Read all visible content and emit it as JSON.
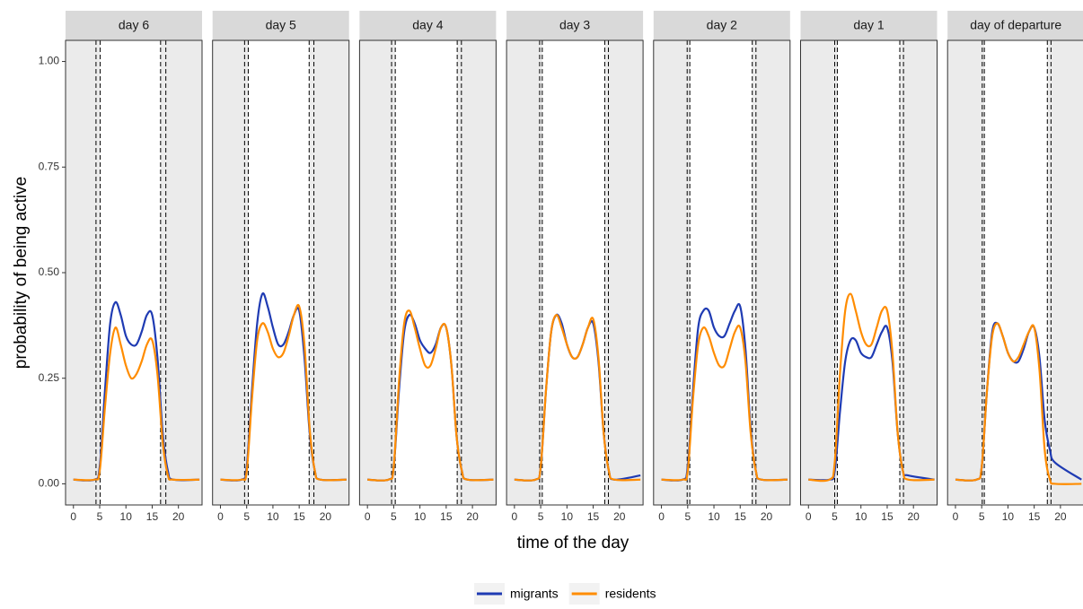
{
  "x_label": "time of the day",
  "y_label": "probability of being active",
  "chart_data": [
    {
      "type": "line",
      "title": "day 6",
      "xlim": [
        -1.5,
        24.5
      ],
      "ylim": [
        -0.05,
        1.05
      ],
      "xticks": [
        0,
        5,
        10,
        15,
        20
      ],
      "yticks": [
        {
          "value": 0,
          "label": "0.00"
        },
        {
          "value": 0.25,
          "label": "0.25"
        },
        {
          "value": 0.5,
          "label": "0.50"
        },
        {
          "value": 0.75,
          "label": "0.75"
        },
        {
          "value": 1,
          "label": "1.00"
        }
      ],
      "vlines": [
        4.3,
        5.1,
        16.6,
        17.6
      ],
      "x": [
        0,
        4,
        5,
        6,
        7,
        8,
        9,
        10,
        11,
        12,
        13,
        14,
        15,
        16,
        17,
        18,
        19,
        24
      ],
      "series": [
        {
          "name": "migrants",
          "color": "#1f3bb3",
          "values": [
            0.01,
            0.01,
            0.04,
            0.22,
            0.38,
            0.43,
            0.4,
            0.35,
            0.33,
            0.33,
            0.36,
            0.4,
            0.4,
            0.3,
            0.12,
            0.03,
            0.01,
            0.01
          ]
        },
        {
          "name": "residents",
          "color": "#ff8c00",
          "values": [
            0.01,
            0.01,
            0.03,
            0.18,
            0.31,
            0.37,
            0.33,
            0.28,
            0.25,
            0.26,
            0.29,
            0.33,
            0.34,
            0.26,
            0.1,
            0.02,
            0.01,
            0.01
          ]
        }
      ]
    },
    {
      "type": "line",
      "title": "day 5",
      "xlim": [
        -1.5,
        24.5
      ],
      "ylim": [
        -0.05,
        1.05
      ],
      "xticks": [
        0,
        5,
        10,
        15,
        20
      ],
      "vlines": [
        4.6,
        5.3,
        16.9,
        17.8
      ],
      "x": [
        0,
        4,
        5,
        6,
        7,
        8,
        9,
        10,
        11,
        12,
        13,
        14,
        15,
        16,
        17,
        18,
        19,
        24
      ],
      "series": [
        {
          "name": "migrants",
          "color": "#1f3bb3",
          "values": [
            0.01,
            0.01,
            0.04,
            0.22,
            0.38,
            0.45,
            0.42,
            0.37,
            0.33,
            0.33,
            0.36,
            0.4,
            0.41,
            0.3,
            0.12,
            0.03,
            0.01,
            0.01
          ]
        },
        {
          "name": "residents",
          "color": "#ff8c00",
          "values": [
            0.01,
            0.01,
            0.03,
            0.2,
            0.34,
            0.38,
            0.36,
            0.32,
            0.3,
            0.31,
            0.35,
            0.4,
            0.42,
            0.33,
            0.13,
            0.03,
            0.01,
            0.01
          ]
        }
      ]
    },
    {
      "type": "line",
      "title": "day 4",
      "xlim": [
        -1.5,
        24.5
      ],
      "ylim": [
        -0.05,
        1.05
      ],
      "xticks": [
        0,
        5,
        10,
        15,
        20
      ],
      "vlines": [
        4.6,
        5.3,
        17.1,
        17.9
      ],
      "x": [
        0,
        4,
        5,
        6,
        7,
        8,
        9,
        10,
        11,
        12,
        13,
        14,
        15,
        16,
        17,
        18,
        19,
        24
      ],
      "series": [
        {
          "name": "migrants",
          "color": "#1f3bb3",
          "values": [
            0.01,
            0.01,
            0.04,
            0.22,
            0.36,
            0.4,
            0.38,
            0.34,
            0.32,
            0.31,
            0.33,
            0.37,
            0.37,
            0.28,
            0.11,
            0.03,
            0.01,
            0.01
          ]
        },
        {
          "name": "residents",
          "color": "#ff8c00",
          "values": [
            0.01,
            0.01,
            0.04,
            0.24,
            0.38,
            0.41,
            0.37,
            0.32,
            0.28,
            0.28,
            0.32,
            0.37,
            0.37,
            0.28,
            0.11,
            0.03,
            0.01,
            0.01
          ]
        }
      ]
    },
    {
      "type": "line",
      "title": "day 3",
      "xlim": [
        -1.5,
        24.5
      ],
      "ylim": [
        -0.05,
        1.05
      ],
      "xticks": [
        0,
        5,
        10,
        15,
        20
      ],
      "vlines": [
        4.8,
        5.3,
        17.2,
        17.9
      ],
      "x": [
        0,
        4,
        5,
        6,
        7,
        8,
        9,
        10,
        11,
        12,
        13,
        14,
        15,
        16,
        17,
        18,
        19,
        24
      ],
      "series": [
        {
          "name": "migrants",
          "color": "#1f3bb3",
          "values": [
            0.01,
            0.01,
            0.04,
            0.22,
            0.36,
            0.4,
            0.38,
            0.33,
            0.3,
            0.3,
            0.33,
            0.37,
            0.38,
            0.29,
            0.12,
            0.03,
            0.01,
            0.02
          ]
        },
        {
          "name": "residents",
          "color": "#ff8c00",
          "values": [
            0.01,
            0.01,
            0.04,
            0.22,
            0.36,
            0.4,
            0.37,
            0.33,
            0.3,
            0.3,
            0.33,
            0.37,
            0.39,
            0.3,
            0.12,
            0.03,
            0.01,
            0.01
          ]
        }
      ]
    },
    {
      "type": "line",
      "title": "day 2",
      "xlim": [
        -1.5,
        24.5
      ],
      "ylim": [
        -0.05,
        1.05
      ],
      "xticks": [
        0,
        5,
        10,
        15,
        20
      ],
      "vlines": [
        4.9,
        5.4,
        17.3,
        18.0
      ],
      "x": [
        0,
        4,
        5,
        6,
        7,
        8,
        9,
        10,
        11,
        12,
        13,
        14,
        15,
        16,
        17,
        18,
        19,
        24
      ],
      "series": [
        {
          "name": "migrants",
          "color": "#1f3bb3",
          "values": [
            0.01,
            0.01,
            0.04,
            0.22,
            0.37,
            0.41,
            0.41,
            0.37,
            0.35,
            0.35,
            0.38,
            0.41,
            0.42,
            0.32,
            0.13,
            0.03,
            0.01,
            0.01
          ]
        },
        {
          "name": "residents",
          "color": "#ff8c00",
          "values": [
            0.01,
            0.01,
            0.03,
            0.2,
            0.33,
            0.37,
            0.35,
            0.31,
            0.28,
            0.28,
            0.32,
            0.36,
            0.37,
            0.29,
            0.12,
            0.03,
            0.01,
            0.01
          ]
        }
      ]
    },
    {
      "type": "line",
      "title": "day 1",
      "xlim": [
        -1.5,
        24.5
      ],
      "ylim": [
        -0.05,
        1.05
      ],
      "xticks": [
        0,
        5,
        10,
        15,
        20
      ],
      "vlines": [
        5.0,
        5.5,
        17.4,
        18.1
      ],
      "x": [
        0,
        4,
        5,
        6,
        7,
        8,
        9,
        10,
        11,
        12,
        13,
        14,
        15,
        16,
        17,
        18,
        19,
        24
      ],
      "series": [
        {
          "name": "migrants",
          "color": "#1f3bb3",
          "values": [
            0.01,
            0.01,
            0.03,
            0.17,
            0.29,
            0.34,
            0.34,
            0.31,
            0.3,
            0.3,
            0.33,
            0.36,
            0.37,
            0.29,
            0.12,
            0.03,
            0.02,
            0.01
          ]
        },
        {
          "name": "residents",
          "color": "#ff8c00",
          "values": [
            0.01,
            0.01,
            0.05,
            0.26,
            0.41,
            0.45,
            0.41,
            0.36,
            0.33,
            0.33,
            0.37,
            0.41,
            0.41,
            0.31,
            0.12,
            0.03,
            0.01,
            0.01
          ]
        }
      ]
    },
    {
      "type": "line",
      "title": "day of departure",
      "xlim": [
        -1.5,
        24.5
      ],
      "ylim": [
        -0.05,
        1.05
      ],
      "xticks": [
        0,
        5,
        10,
        15,
        20
      ],
      "vlines": [
        5.1,
        5.5,
        17.5,
        18.2
      ],
      "x": [
        0,
        4,
        5,
        6,
        7,
        8,
        9,
        10,
        11,
        12,
        13,
        14,
        15,
        16,
        17,
        18,
        19,
        24
      ],
      "series": [
        {
          "name": "migrants",
          "color": "#1f3bb3",
          "values": [
            0.01,
            0.01,
            0.04,
            0.22,
            0.36,
            0.38,
            0.35,
            0.31,
            0.29,
            0.29,
            0.32,
            0.36,
            0.37,
            0.3,
            0.15,
            0.08,
            0.05,
            0.01
          ]
        },
        {
          "name": "residents",
          "color": "#ff8c00",
          "values": [
            0.01,
            0.01,
            0.04,
            0.22,
            0.35,
            0.38,
            0.35,
            0.31,
            0.29,
            0.3,
            0.33,
            0.36,
            0.37,
            0.27,
            0.08,
            0.01,
            0.0,
            0.0
          ]
        }
      ]
    }
  ]
}
